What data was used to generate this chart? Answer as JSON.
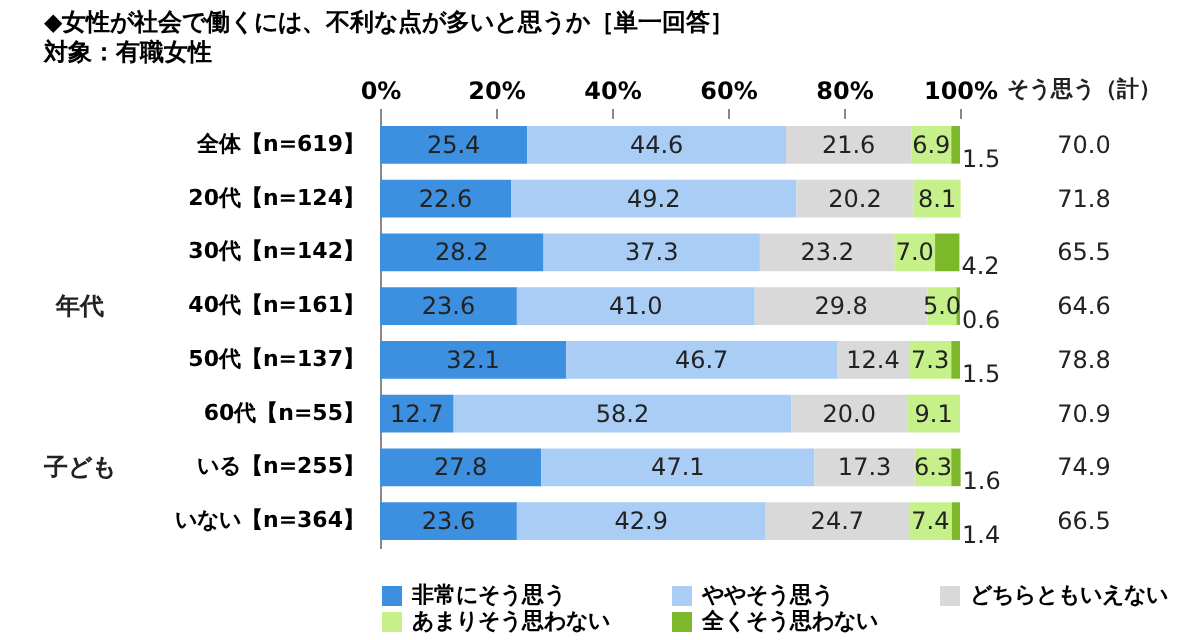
{
  "chart_data": {
    "type": "bar",
    "orientation": "horizontal",
    "stacked": true,
    "title": "◆女性が社会で働くには、不利な点が多いと思うか［単一回答］",
    "subtitle": "対象：有職女性",
    "categories": [
      "全体【n=619】",
      "20代【n=124】",
      "30代【n=142】",
      "40代【n=161】",
      "50代【n=137】",
      "60代【n=55】",
      "いる【n=255】",
      "いない【n=364】"
    ],
    "series": [
      {
        "name": "非常にそう思う",
        "color": "#3d8fe0",
        "values": [
          25.4,
          22.6,
          28.2,
          23.6,
          32.1,
          12.7,
          27.8,
          23.6
        ],
        "value_labels": [
          "25.4",
          "22.6",
          "28.2",
          "23.6",
          "32.1",
          "12.7",
          "27.8",
          "23.6"
        ]
      },
      {
        "name": "ややそう思う",
        "color": "#a9cdf5",
        "values": [
          44.6,
          49.2,
          37.3,
          41.0,
          46.7,
          58.2,
          47.1,
          42.9
        ],
        "value_labels": [
          "44.6",
          "49.2",
          "37.3",
          "41.0",
          "46.7",
          "58.2",
          "47.1",
          "42.9"
        ]
      },
      {
        "name": "どちらともいえない",
        "color": "#d9d9d9",
        "values": [
          21.6,
          20.2,
          23.2,
          29.8,
          12.4,
          20.0,
          17.3,
          24.7
        ],
        "value_labels": [
          "21.6",
          "20.2",
          "23.2",
          "29.8",
          "12.4",
          "20.0",
          "17.3",
          "24.7"
        ]
      },
      {
        "name": "あまりそう思わない",
        "color": "#c6f08a",
        "values": [
          6.9,
          8.1,
          7.0,
          5.0,
          7.3,
          9.1,
          6.3,
          7.4
        ],
        "value_labels": [
          "6.9",
          "8.1",
          "7.0",
          "5.0",
          "7.3",
          "9.1",
          "6.3",
          "7.4"
        ]
      },
      {
        "name": "全くそう思わない",
        "color": "#7cb82a",
        "values": [
          1.5,
          null,
          4.2,
          0.6,
          1.5,
          null,
          1.6,
          1.4
        ],
        "value_labels": [
          "1.5",
          null,
          "4.2",
          "0.6",
          "1.5",
          null,
          "1.6",
          "1.4"
        ]
      }
    ],
    "xlim": [
      0,
      100
    ],
    "xticks": [
      {
        "value": 0,
        "label": "0%"
      },
      {
        "value": 20,
        "label": "20%"
      },
      {
        "value": 40,
        "label": "40%"
      },
      {
        "value": 60,
        "label": "60%"
      },
      {
        "value": 80,
        "label": "80%"
      },
      {
        "value": 100,
        "label": "100%"
      }
    ],
    "legend": "bottom",
    "grid": false,
    "annotations": [
      "そう思う（計）",
      "70.0",
      "71.8",
      "65.5",
      "64.6",
      "78.8",
      "70.9",
      "74.9",
      "66.5",
      "年代",
      "子ども"
    ]
  }
}
